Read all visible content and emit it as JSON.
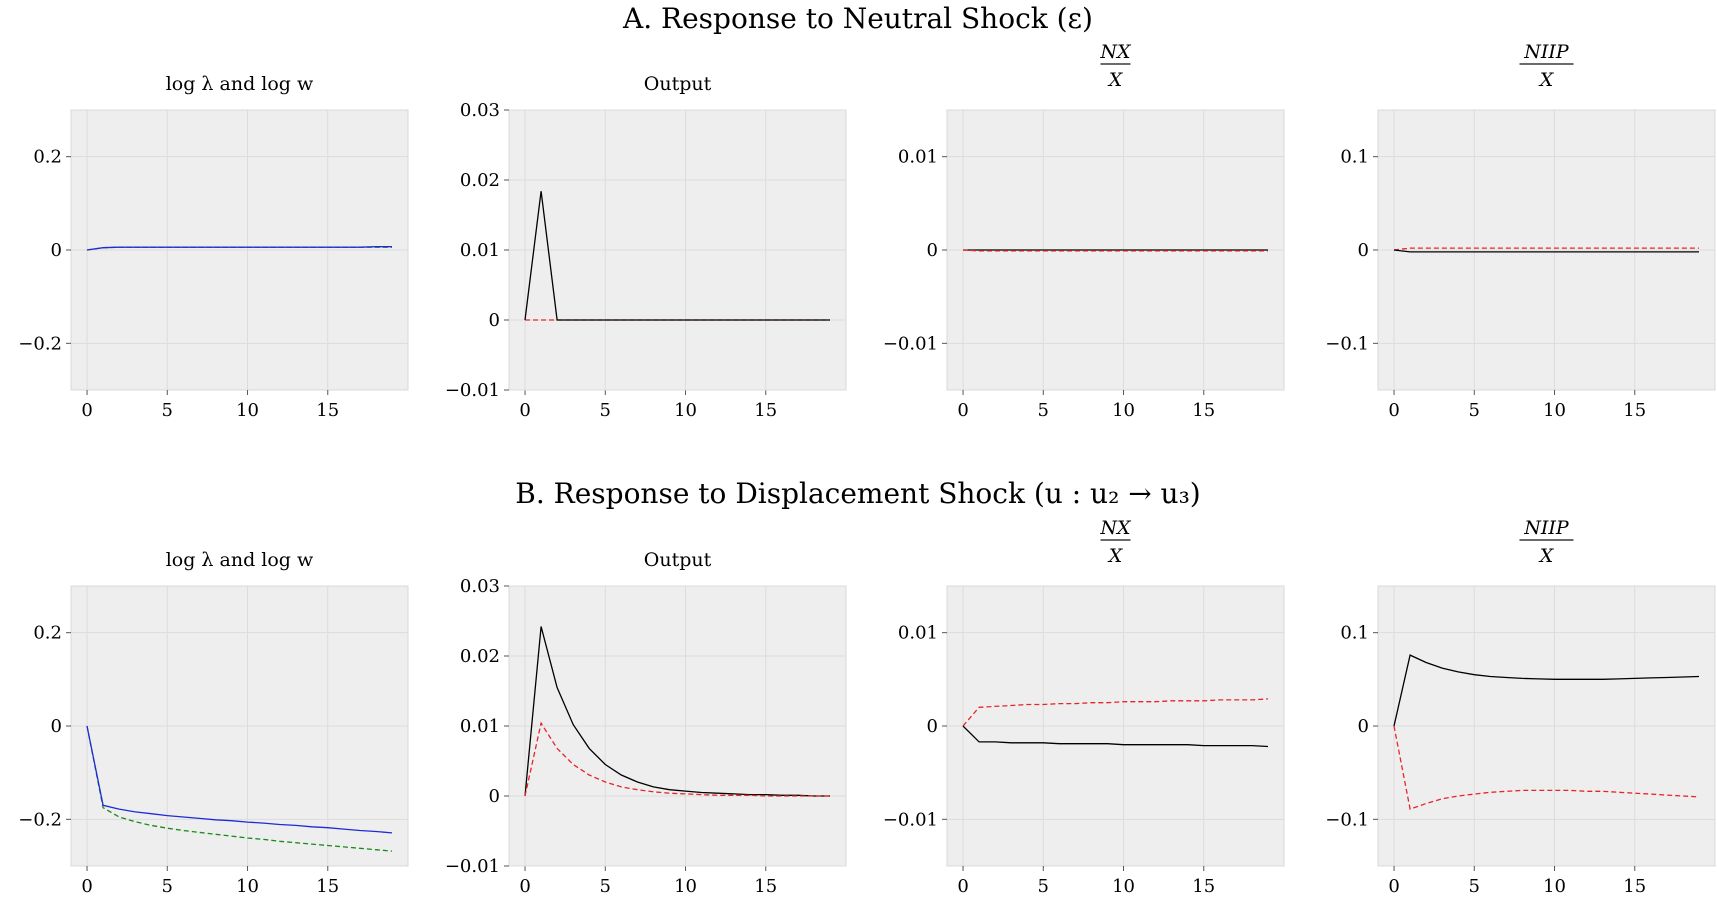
{
  "section_titles": [
    "A. Response to Neutral Shock (ε)",
    "B. Response to Displacement Shock (u : u₂ → u₃)"
  ],
  "colors": {
    "plot_bg": "#eeeeee",
    "grid": "#dcdcdc",
    "black": "#000000",
    "red": "#e8252b",
    "blue": "#1f2bd6",
    "green": "#1a8a1a"
  },
  "chart_data": [
    {
      "type": "line",
      "row": 0,
      "col": 0,
      "title": "log λ and log w",
      "xlim": [
        -1,
        20
      ],
      "ylim": [
        -0.3,
        0.3
      ],
      "xticks": [
        0,
        5,
        10,
        15
      ],
      "xtick_labels": [
        "0",
        "5",
        "10",
        "15"
      ],
      "yticks": [
        0.2,
        0,
        -0.2
      ],
      "ytick_labels": [
        "0.2",
        "0",
        "−0.2"
      ],
      "grid": true,
      "series": [
        {
          "color": "green",
          "dashed": true,
          "x": [
            0,
            1,
            2,
            3,
            4,
            5,
            6,
            7,
            8,
            9,
            10,
            11,
            12,
            13,
            14,
            15,
            16,
            17,
            18,
            19
          ],
          "y": [
            0,
            0.005,
            0.006,
            0.006,
            0.006,
            0.006,
            0.006,
            0.006,
            0.006,
            0.006,
            0.006,
            0.006,
            0.006,
            0.006,
            0.006,
            0.006,
            0.006,
            0.006,
            0.006,
            0.006
          ]
        },
        {
          "color": "blue",
          "dashed": false,
          "x": [
            0,
            1,
            2,
            3,
            4,
            5,
            6,
            7,
            8,
            9,
            10,
            11,
            12,
            13,
            14,
            15,
            16,
            17,
            18,
            19
          ],
          "y": [
            0,
            0.005,
            0.006,
            0.006,
            0.006,
            0.006,
            0.006,
            0.006,
            0.006,
            0.006,
            0.006,
            0.006,
            0.006,
            0.006,
            0.006,
            0.006,
            0.006,
            0.006,
            0.007,
            0.007
          ]
        }
      ]
    },
    {
      "type": "line",
      "row": 0,
      "col": 1,
      "title": "Output",
      "xlim": [
        -1,
        20
      ],
      "ylim": [
        -0.01,
        0.03
      ],
      "xticks": [
        0,
        5,
        10,
        15
      ],
      "xtick_labels": [
        "0",
        "5",
        "10",
        "15"
      ],
      "yticks": [
        0.03,
        0.02,
        0.01,
        0,
        -0.01
      ],
      "ytick_labels": [
        "0.03",
        "0.02",
        "0.01",
        "0",
        "−0.01"
      ],
      "grid": true,
      "series": [
        {
          "color": "red",
          "dashed": true,
          "x": [
            0,
            1,
            2,
            3,
            4,
            5,
            6,
            7,
            8,
            9,
            10,
            11,
            12,
            13,
            14,
            15,
            16,
            17,
            18,
            19
          ],
          "y": [
            0,
            0,
            0,
            0,
            0,
            0,
            0,
            0,
            0,
            0,
            0,
            0,
            0,
            0,
            0,
            0,
            0,
            0,
            0,
            0
          ]
        },
        {
          "color": "black",
          "dashed": false,
          "x": [
            0,
            1,
            2,
            3,
            4,
            5,
            6,
            7,
            8,
            9,
            10,
            11,
            12,
            13,
            14,
            15,
            16,
            17,
            18,
            19
          ],
          "y": [
            0,
            0.0184,
            0,
            0,
            0,
            0,
            0,
            0,
            0,
            0,
            0,
            0,
            0,
            0,
            0,
            0,
            0,
            0,
            0,
            0
          ]
        }
      ]
    },
    {
      "type": "line",
      "row": 0,
      "col": 2,
      "title_frac": [
        "NX",
        "X"
      ],
      "xlim": [
        -1,
        20
      ],
      "ylim": [
        -0.015,
        0.015
      ],
      "xticks": [
        0,
        5,
        10,
        15
      ],
      "xtick_labels": [
        "0",
        "5",
        "10",
        "15"
      ],
      "yticks": [
        0.01,
        0,
        -0.01
      ],
      "ytick_labels": [
        "0.01",
        "0",
        "−0.01"
      ],
      "grid": true,
      "series": [
        {
          "color": "black",
          "dashed": false,
          "x": [
            0,
            1,
            2,
            3,
            4,
            5,
            6,
            7,
            8,
            9,
            10,
            11,
            12,
            13,
            14,
            15,
            16,
            17,
            18,
            19
          ],
          "y": [
            0,
            0,
            0,
            0,
            0,
            0,
            0,
            0,
            0,
            0,
            0,
            0,
            0,
            0,
            0,
            0,
            0,
            0,
            0,
            0
          ]
        },
        {
          "color": "red",
          "dashed": true,
          "x": [
            0,
            1,
            2,
            3,
            4,
            5,
            6,
            7,
            8,
            9,
            10,
            11,
            12,
            13,
            14,
            15,
            16,
            17,
            18,
            19
          ],
          "y": [
            0,
            -0.0001,
            -0.0001,
            -0.0001,
            -0.0001,
            -0.0001,
            -0.0001,
            -0.0001,
            -0.0001,
            -0.0001,
            -0.0001,
            -0.0001,
            -0.0001,
            -0.0001,
            -0.0001,
            -0.0001,
            -0.0001,
            -0.0001,
            -0.0001,
            -0.0001
          ]
        }
      ]
    },
    {
      "type": "line",
      "row": 0,
      "col": 3,
      "title_frac": [
        "NIIP",
        "X"
      ],
      "xlim": [
        -1,
        20
      ],
      "ylim": [
        -0.15,
        0.15
      ],
      "xticks": [
        0,
        5,
        10,
        15
      ],
      "xtick_labels": [
        "0",
        "5",
        "10",
        "15"
      ],
      "yticks": [
        0.1,
        0,
        -0.1
      ],
      "ytick_labels": [
        "0.1",
        "0",
        "−0.1"
      ],
      "grid": true,
      "series": [
        {
          "color": "red",
          "dashed": true,
          "x": [
            0,
            1,
            2,
            3,
            4,
            5,
            6,
            7,
            8,
            9,
            10,
            11,
            12,
            13,
            14,
            15,
            16,
            17,
            18,
            19
          ],
          "y": [
            0,
            0.002,
            0.002,
            0.002,
            0.002,
            0.002,
            0.002,
            0.002,
            0.002,
            0.002,
            0.002,
            0.002,
            0.002,
            0.002,
            0.002,
            0.002,
            0.002,
            0.002,
            0.002,
            0.002
          ]
        },
        {
          "color": "black",
          "dashed": false,
          "x": [
            0,
            1,
            2,
            3,
            4,
            5,
            6,
            7,
            8,
            9,
            10,
            11,
            12,
            13,
            14,
            15,
            16,
            17,
            18,
            19
          ],
          "y": [
            0,
            -0.002,
            -0.002,
            -0.002,
            -0.002,
            -0.002,
            -0.002,
            -0.002,
            -0.002,
            -0.002,
            -0.002,
            -0.002,
            -0.002,
            -0.002,
            -0.002,
            -0.002,
            -0.002,
            -0.002,
            -0.002,
            -0.002
          ]
        }
      ]
    },
    {
      "type": "line",
      "row": 1,
      "col": 0,
      "title": "log λ and log w",
      "xlim": [
        -1,
        20
      ],
      "ylim": [
        -0.3,
        0.3
      ],
      "xticks": [
        0,
        5,
        10,
        15
      ],
      "xtick_labels": [
        "0",
        "5",
        "10",
        "15"
      ],
      "yticks": [
        0.2,
        0,
        -0.2
      ],
      "ytick_labels": [
        "0.2",
        "0",
        "−0.2"
      ],
      "grid": true,
      "series": [
        {
          "color": "green",
          "dashed": true,
          "x": [
            0,
            1,
            2,
            3,
            4,
            5,
            6,
            7,
            8,
            9,
            10,
            11,
            12,
            13,
            14,
            15,
            16,
            17,
            18,
            19
          ],
          "y": [
            0,
            -0.175,
            -0.195,
            -0.205,
            -0.213,
            -0.219,
            -0.224,
            -0.228,
            -0.232,
            -0.236,
            -0.24,
            -0.243,
            -0.247,
            -0.25,
            -0.253,
            -0.256,
            -0.259,
            -0.262,
            -0.265,
            -0.268
          ]
        },
        {
          "color": "blue",
          "dashed": false,
          "x": [
            0,
            1,
            2,
            3,
            4,
            5,
            6,
            7,
            8,
            9,
            10,
            11,
            12,
            13,
            14,
            15,
            16,
            17,
            18,
            19
          ],
          "y": [
            0,
            -0.17,
            -0.178,
            -0.184,
            -0.188,
            -0.192,
            -0.195,
            -0.198,
            -0.201,
            -0.203,
            -0.206,
            -0.208,
            -0.211,
            -0.213,
            -0.216,
            -0.218,
            -0.221,
            -0.224,
            -0.226,
            -0.229
          ]
        }
      ]
    },
    {
      "type": "line",
      "row": 1,
      "col": 1,
      "title": "Output",
      "xlim": [
        -1,
        20
      ],
      "ylim": [
        -0.01,
        0.03
      ],
      "xticks": [
        0,
        5,
        10,
        15
      ],
      "xtick_labels": [
        "0",
        "5",
        "10",
        "15"
      ],
      "yticks": [
        0.03,
        0.02,
        0.01,
        0,
        -0.01
      ],
      "ytick_labels": [
        "0.03",
        "0.02",
        "0.01",
        "0",
        "−0.01"
      ],
      "grid": true,
      "series": [
        {
          "color": "black",
          "dashed": false,
          "x": [
            0,
            1,
            2,
            3,
            4,
            5,
            6,
            7,
            8,
            9,
            10,
            11,
            12,
            13,
            14,
            15,
            16,
            17,
            18,
            19
          ],
          "y": [
            0,
            0.0242,
            0.0155,
            0.0102,
            0.0068,
            0.0045,
            0.003,
            0.002,
            0.0013,
            0.0009,
            0.0007,
            0.0005,
            0.0004,
            0.0003,
            0.0002,
            0.0002,
            0.0001,
            0.0001,
            0,
            0
          ]
        },
        {
          "color": "red",
          "dashed": true,
          "x": [
            0,
            1,
            2,
            3,
            4,
            5,
            6,
            7,
            8,
            9,
            10,
            11,
            12,
            13,
            14,
            15,
            16,
            17,
            18,
            19
          ],
          "y": [
            0,
            0.0104,
            0.0068,
            0.0045,
            0.003,
            0.002,
            0.0013,
            0.0009,
            0.0006,
            0.0004,
            0.0003,
            0.0002,
            0.0001,
            0.0001,
            0.0001,
            0,
            0,
            0,
            0,
            0
          ]
        }
      ]
    },
    {
      "type": "line",
      "row": 1,
      "col": 2,
      "title_frac": [
        "NX",
        "X"
      ],
      "xlim": [
        -1,
        20
      ],
      "ylim": [
        -0.015,
        0.015
      ],
      "xticks": [
        0,
        5,
        10,
        15
      ],
      "xtick_labels": [
        "0",
        "5",
        "10",
        "15"
      ],
      "yticks": [
        0.01,
        0,
        -0.01
      ],
      "ytick_labels": [
        "0.01",
        "0",
        "−0.01"
      ],
      "grid": true,
      "series": [
        {
          "color": "red",
          "dashed": true,
          "x": [
            0,
            1,
            2,
            3,
            4,
            5,
            6,
            7,
            8,
            9,
            10,
            11,
            12,
            13,
            14,
            15,
            16,
            17,
            18,
            19
          ],
          "y": [
            0,
            0.002,
            0.0021,
            0.0022,
            0.0023,
            0.0023,
            0.0024,
            0.0024,
            0.0025,
            0.0025,
            0.0026,
            0.0026,
            0.0026,
            0.0027,
            0.0027,
            0.0027,
            0.0028,
            0.0028,
            0.0028,
            0.0029
          ]
        },
        {
          "color": "black",
          "dashed": false,
          "x": [
            0,
            1,
            2,
            3,
            4,
            5,
            6,
            7,
            8,
            9,
            10,
            11,
            12,
            13,
            14,
            15,
            16,
            17,
            18,
            19
          ],
          "y": [
            0,
            -0.0017,
            -0.0017,
            -0.0018,
            -0.0018,
            -0.0018,
            -0.0019,
            -0.0019,
            -0.0019,
            -0.0019,
            -0.002,
            -0.002,
            -0.002,
            -0.002,
            -0.002,
            -0.0021,
            -0.0021,
            -0.0021,
            -0.0021,
            -0.0022
          ]
        }
      ]
    },
    {
      "type": "line",
      "row": 1,
      "col": 3,
      "title_frac": [
        "NIIP",
        "X"
      ],
      "xlim": [
        -1,
        20
      ],
      "ylim": [
        -0.15,
        0.15
      ],
      "xticks": [
        0,
        5,
        10,
        15
      ],
      "xtick_labels": [
        "0",
        "5",
        "10",
        "15"
      ],
      "yticks": [
        0.1,
        0,
        -0.1
      ],
      "ytick_labels": [
        "0.1",
        "0",
        "−0.1"
      ],
      "grid": true,
      "series": [
        {
          "color": "black",
          "dashed": false,
          "x": [
            0,
            1,
            2,
            3,
            4,
            5,
            6,
            7,
            8,
            9,
            10,
            11,
            12,
            13,
            14,
            15,
            16,
            17,
            18,
            19
          ],
          "y": [
            0,
            0.076,
            0.068,
            0.062,
            0.058,
            0.055,
            0.053,
            0.052,
            0.051,
            0.0505,
            0.05,
            0.05,
            0.05,
            0.05,
            0.0505,
            0.051,
            0.0515,
            0.052,
            0.0525,
            0.053
          ]
        },
        {
          "color": "red",
          "dashed": true,
          "x": [
            0,
            1,
            2,
            3,
            4,
            5,
            6,
            7,
            8,
            9,
            10,
            11,
            12,
            13,
            14,
            15,
            16,
            17,
            18,
            19
          ],
          "y": [
            0,
            -0.089,
            -0.083,
            -0.078,
            -0.075,
            -0.073,
            -0.071,
            -0.07,
            -0.069,
            -0.069,
            -0.069,
            -0.069,
            -0.07,
            -0.07,
            -0.071,
            -0.072,
            -0.073,
            -0.074,
            -0.075,
            -0.076
          ]
        }
      ]
    }
  ]
}
